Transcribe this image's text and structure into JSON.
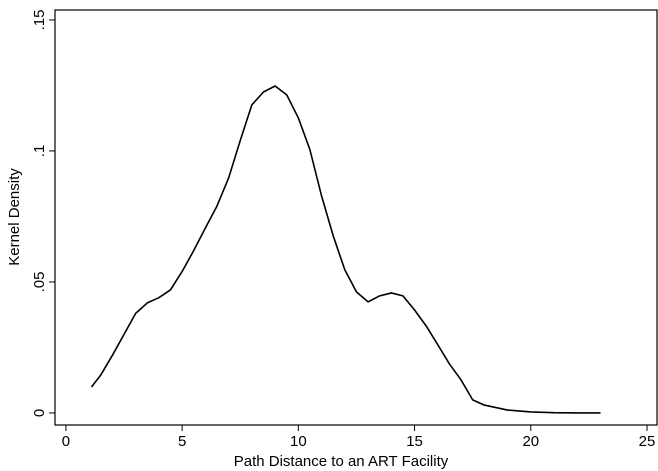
{
  "chart_data": {
    "type": "line",
    "x_label": "Path Distance to an ART Facility",
    "y_label": "Kernel Density",
    "x": [
      1.1,
      1.5,
      2,
      2.5,
      3,
      3.5,
      4,
      4.5,
      5,
      5.5,
      6,
      6.5,
      7,
      7.5,
      8,
      8.5,
      9,
      9.5,
      10,
      10.5,
      11,
      11.5,
      12,
      12.5,
      13,
      13.5,
      14,
      14.5,
      15,
      15.5,
      16,
      16.5,
      17,
      17.5,
      18,
      19,
      20,
      21,
      22,
      23
    ],
    "values": [
      0.0099,
      0.0145,
      0.022,
      0.03,
      0.038,
      0.042,
      0.044,
      0.047,
      0.054,
      0.062,
      0.0706,
      0.079,
      0.0897,
      0.104,
      0.1176,
      0.1225,
      0.1248,
      0.1214,
      0.1126,
      0.1004,
      0.0828,
      0.0676,
      0.0546,
      0.0462,
      0.0424,
      0.0447,
      0.0458,
      0.0447,
      0.0393,
      0.0332,
      0.026,
      0.0187,
      0.0126,
      0.005,
      0.003,
      0.0011,
      0.0004,
      0.0001,
      0,
      0
    ],
    "color": "#000000",
    "xlim": [
      -0.47,
      25.43
    ],
    "ylim": [
      -0.0046,
      0.1538
    ],
    "xticks": [
      0,
      5,
      10,
      15,
      20,
      25
    ],
    "yticks": [
      0,
      {
        "value": 0.05,
        "label": ".05"
      },
      {
        "value": 0.1,
        "label": ".1"
      },
      {
        "value": 0.15,
        "label": ".15"
      }
    ]
  }
}
